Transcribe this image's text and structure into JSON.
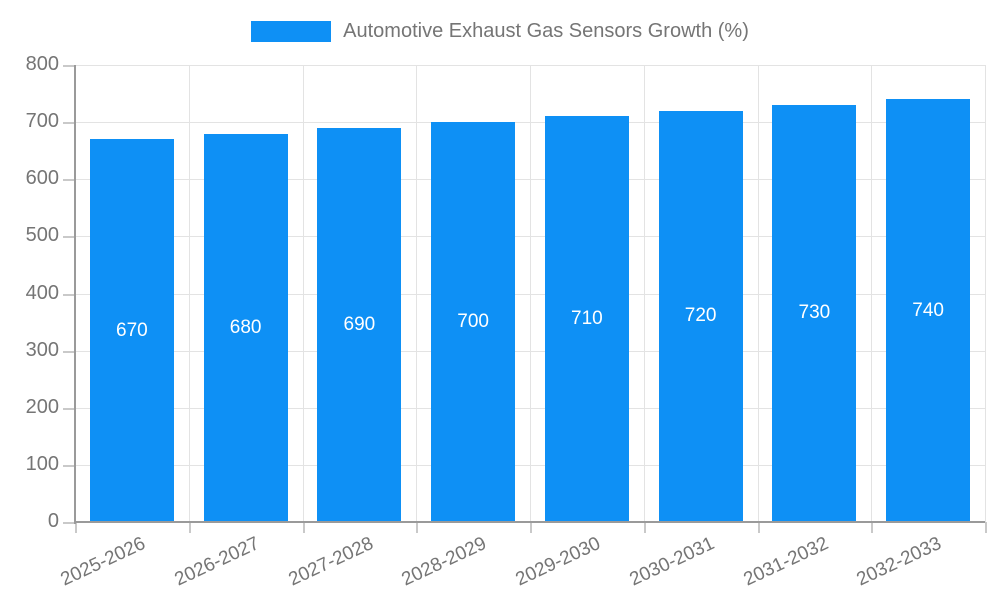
{
  "legend": {
    "position": "top"
  },
  "chart_data": {
    "type": "bar",
    "title": "Automotive Exhaust Gas Sensors Growth (%)",
    "categories": [
      "2025-2026",
      "2026-2027",
      "2027-2028",
      "2028-2029",
      "2029-2030",
      "2030-2031",
      "2031-2032",
      "2032-2033"
    ],
    "values": [
      670,
      680,
      690,
      700,
      710,
      720,
      730,
      740
    ],
    "xlabel": "",
    "ylabel": "",
    "ylim": [
      0,
      800
    ],
    "ytick_step": 100,
    "yticks": [
      0,
      100,
      200,
      300,
      400,
      500,
      600,
      700,
      800
    ],
    "grid": true,
    "legend_position": "top",
    "colors": {
      "bar": "#0e90f5",
      "gridline": "#e3e3e3",
      "tick": "#c9c9c9",
      "axis": "#9a9a9a",
      "text": "#757575",
      "value_label": "#ffffff",
      "background": "#ffffff"
    }
  }
}
